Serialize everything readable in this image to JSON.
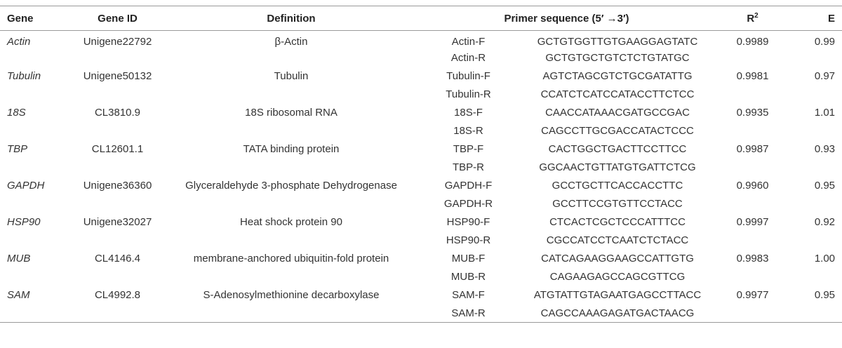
{
  "headers": {
    "gene": "Gene",
    "gene_id": "Gene ID",
    "definition": "Definition",
    "primer": "Primer sequence (5′ →3′)",
    "r2_base": "R",
    "r2_sup": "2",
    "e": "E"
  },
  "rows": [
    {
      "gene": "Actin",
      "id": "Unigene22792",
      "definition": "β-Actin",
      "f_name": "Actin-F",
      "f_seq": "GCTGTGGTTGTGAAGGAGTATC",
      "r_name": "Actin-R",
      "r_seq": "GCTGTGCTGTCTCTGTATGC",
      "r2": "0.9989",
      "e": "0.99"
    },
    {
      "gene": "Tubulin",
      "id": "Unigene50132",
      "definition": "Tubulin",
      "f_name": "Tubulin-F",
      "f_seq": "AGTCTAGCGTCTGCGATATTG",
      "r_name": "Tubulin-R",
      "r_seq": "CCATCTCATCCATACCTTCTCC",
      "r2": "0.9981",
      "e": "0.97"
    },
    {
      "gene": "18S",
      "id": "CL3810.9",
      "definition": "18S ribosomal RNA",
      "f_name": "18S-F",
      "f_seq": "CAACCATAAACGATGCCGAC",
      "r_name": "18S-R",
      "r_seq": "CAGCCTTGCGACCATACTCCC",
      "r2": "0.9935",
      "e": "1.01"
    },
    {
      "gene": "TBP",
      "id": "CL12601.1",
      "definition": "TATA binding protein",
      "f_name": "TBP-F",
      "f_seq": "CACTGGCTGACTTCCTTCC",
      "r_name": "TBP-R",
      "r_seq": "GGCAACTGTTATGTGATTCTCG",
      "r2": "0.9987",
      "e": "0.93"
    },
    {
      "gene": "GAPDH",
      "id": "Unigene36360",
      "definition": "Glyceraldehyde 3-phosphate Dehydrogenase",
      "f_name": "GAPDH-F",
      "f_seq": "GCCTGCTTCACCACCTTC",
      "r_name": "GAPDH-R",
      "r_seq": "GCCTTCCGTGTTCCTACC",
      "r2": "0.9960",
      "e": "0.95"
    },
    {
      "gene": "HSP90",
      "id": "Unigene32027",
      "definition": "Heat shock protein 90",
      "f_name": "HSP90-F",
      "f_seq": "CTCACTCGCTCCCATTTCC",
      "r_name": "HSP90-R",
      "r_seq": "CGCCATCCTCAATCTCTACC",
      "r2": "0.9997",
      "e": "0.92"
    },
    {
      "gene": "MUB",
      "id": "CL4146.4",
      "definition": "membrane-anchored ubiquitin-fold protein",
      "f_name": "MUB-F",
      "f_seq": "CATCAGAAGGAAGCCATTGTG",
      "r_name": "MUB-R",
      "r_seq": "CAGAAGAGCCAGCGTTCG",
      "r2": "0.9983",
      "e": "1.00"
    },
    {
      "gene": "SAM",
      "id": "CL4992.8",
      "definition": "S-Adenosylmethionine decarboxylase",
      "f_name": "SAM-F",
      "f_seq": "ATGTATTGTAGAATGAGCCTTACC",
      "r_name": "SAM-R",
      "r_seq": "CAGCCAAAGAGATGACTAACG",
      "r2": "0.9977",
      "e": "0.95"
    }
  ]
}
